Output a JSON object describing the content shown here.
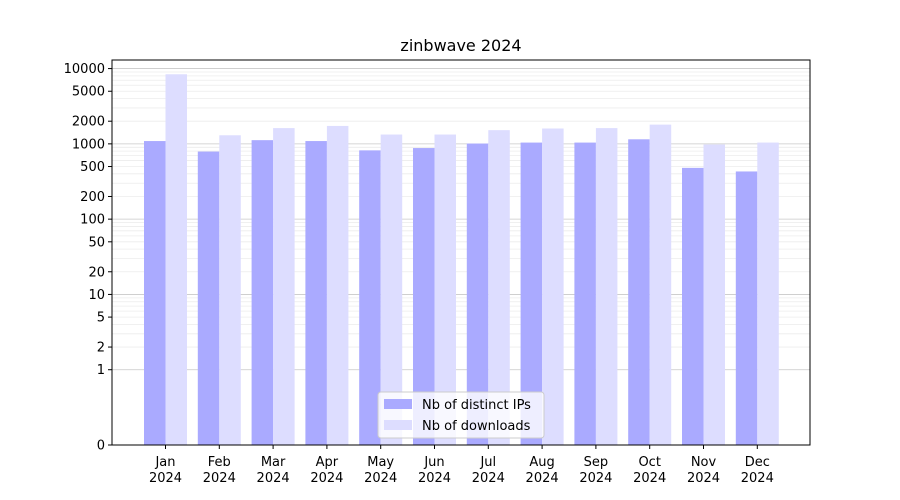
{
  "chart_data": {
    "type": "bar",
    "title": "zinbwave 2024",
    "categories": [
      "Jan\n2024",
      "Feb\n2024",
      "Mar\n2024",
      "Apr\n2024",
      "May\n2024",
      "Jun\n2024",
      "Jul\n2024",
      "Aug\n2024",
      "Sep\n2024",
      "Oct\n2024",
      "Nov\n2024",
      "Dec\n2024"
    ],
    "series": [
      {
        "name": "Nb of distinct IPs",
        "color": "#aaaaff",
        "values": [
          1090,
          790,
          1120,
          1090,
          820,
          880,
          1010,
          1040,
          1040,
          1150,
          480,
          430
        ]
      },
      {
        "name": "Nb of downloads",
        "color": "#ddddff",
        "values": [
          8400,
          1300,
          1620,
          1730,
          1330,
          1330,
          1520,
          1600,
          1620,
          1800,
          980,
          1040
        ]
      }
    ],
    "yscale": "symlog",
    "ylim": [
      0,
      13000
    ],
    "yticks": [
      0,
      1,
      2,
      5,
      10,
      20,
      50,
      100,
      200,
      500,
      1000,
      2000,
      5000,
      10000
    ],
    "ytick_labels": [
      "0",
      "1",
      "2",
      "5",
      "10",
      "20",
      "50",
      "100",
      "200",
      "500",
      "1000",
      "2000",
      "5000",
      "10000"
    ],
    "grid": true,
    "legend_position": "bottom-center"
  }
}
